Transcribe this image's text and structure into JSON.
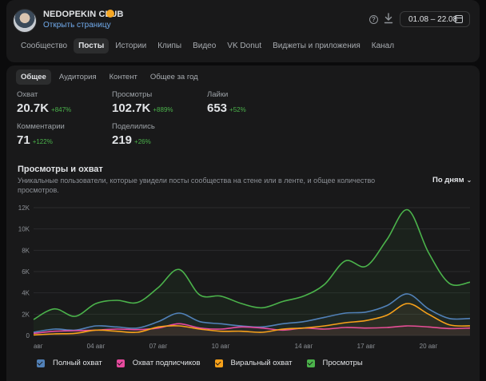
{
  "header": {
    "club_name": "NEDOPEKIN CLUB",
    "open_page": "Открыть страницу",
    "date_range": "01.08 – 22.08",
    "icons": [
      "help-icon",
      "download-icon",
      "calendar-icon",
      "chevron-down-icon",
      "verified-icon"
    ]
  },
  "main_tabs": [
    "Сообщество",
    "Посты",
    "Истории",
    "Клипы",
    "Видео",
    "VK Donut",
    "Виджеты и приложения",
    "Канал"
  ],
  "main_tab_active": "Посты",
  "sub_tabs": [
    "Общее",
    "Аудитория",
    "Контент",
    "Общее за год"
  ],
  "sub_tab_active": "Общее",
  "metrics": {
    "reach": {
      "label": "Охват",
      "value": "20.7K",
      "delta": "+847%"
    },
    "views": {
      "label": "Просмотры",
      "value": "102.7K",
      "delta": "+889%"
    },
    "likes": {
      "label": "Лайки",
      "value": "653",
      "delta": "+52%"
    },
    "comments": {
      "label": "Комментарии",
      "value": "71",
      "delta": "+122%"
    },
    "shares": {
      "label": "Поделились",
      "value": "219",
      "delta": "+26%"
    }
  },
  "section": {
    "title": "Просмотры и охват",
    "description": "Уникальные пользователи, которые увидели посты сообщества на стене или в ленте, и общее количество просмотров.",
    "group_by": "По дням"
  },
  "chart_data": {
    "type": "area",
    "x": [
      "01.08",
      "02.08",
      "03.08",
      "04.08",
      "05.08",
      "06.08",
      "07.08",
      "08.08",
      "09.08",
      "10.08",
      "11.08",
      "12.08",
      "13.08",
      "14.08",
      "15.08",
      "16.08",
      "17.08",
      "18.08",
      "19.08",
      "20.08",
      "21.08",
      "22.08"
    ],
    "x_tick_labels": [
      "авг",
      "04 авг",
      "07 авг",
      "10 авг",
      "14 авг",
      "17 авг",
      "20 авг"
    ],
    "x_tick_positions": [
      "01.08",
      "04.08",
      "07.08",
      "10.08",
      "14.08",
      "17.08",
      "20.08"
    ],
    "y_ticks": [
      "0",
      "2K",
      "4K",
      "6K",
      "8K",
      "10K",
      "12K"
    ],
    "ylim": [
      0,
      12000
    ],
    "grid": true,
    "legend_position": "bottom",
    "series": [
      {
        "name": "Полный охват",
        "color": "#5181b8",
        "values": [
          300,
          600,
          500,
          900,
          800,
          700,
          1300,
          2100,
          1300,
          1100,
          900,
          800,
          1100,
          1300,
          1700,
          2100,
          2200,
          2800,
          3900,
          2500,
          1600,
          1600
        ]
      },
      {
        "name": "Охват подписчиков",
        "color": "#e64a9e",
        "values": [
          200,
          400,
          450,
          500,
          600,
          550,
          700,
          1100,
          700,
          600,
          800,
          700,
          500,
          700,
          600,
          750,
          700,
          750,
          900,
          800,
          650,
          700
        ]
      },
      {
        "name": "Виральный охват",
        "color": "#f7a11a",
        "values": [
          50,
          150,
          200,
          500,
          400,
          300,
          800,
          900,
          600,
          400,
          400,
          300,
          600,
          700,
          900,
          1200,
          1400,
          1900,
          3000,
          2000,
          1000,
          900
        ]
      },
      {
        "name": "Просмотры",
        "color": "#4bb34b",
        "values": [
          1500,
          2500,
          1800,
          3000,
          3300,
          3100,
          4500,
          6200,
          3800,
          3700,
          3000,
          2600,
          3200,
          3700,
          4800,
          7000,
          6500,
          9000,
          11800,
          7800,
          4900,
          5000
        ]
      }
    ]
  }
}
